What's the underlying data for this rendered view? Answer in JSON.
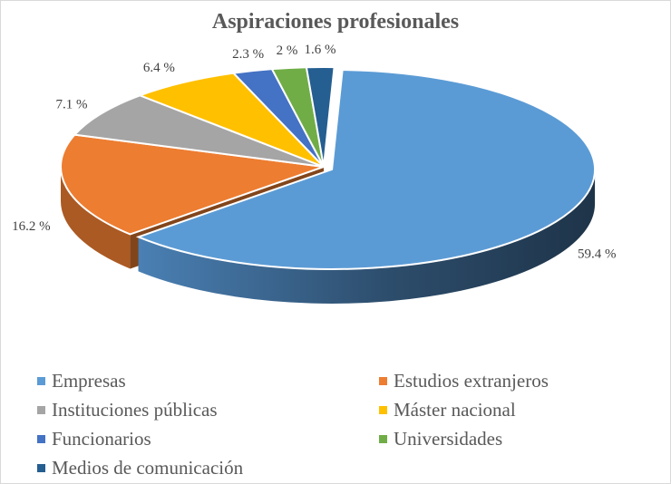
{
  "chart_data": {
    "type": "pie",
    "title": "Aspiraciones profesionales",
    "legend_position": "bottom",
    "categories": [
      "Empresas",
      "Estudios extranjeros",
      "Instituciones públicas",
      "Máster nacional",
      "Funcionarios",
      "Universidades",
      "Medios de comunicación"
    ],
    "values": [
      59.4,
      16.2,
      7.1,
      6.4,
      2.3,
      2.0,
      1.6
    ],
    "labels": [
      "59.4 %",
      "16.2 %",
      "7.1 %",
      "6.4 %",
      "2.3 %",
      "2 %",
      "1.6 %"
    ],
    "colors": [
      "#5B9BD5",
      "#ED7D31",
      "#A5A5A5",
      "#FFC000",
      "#4472C4",
      "#70AD47",
      "#255E91"
    ],
    "exploded": "Empresas"
  }
}
